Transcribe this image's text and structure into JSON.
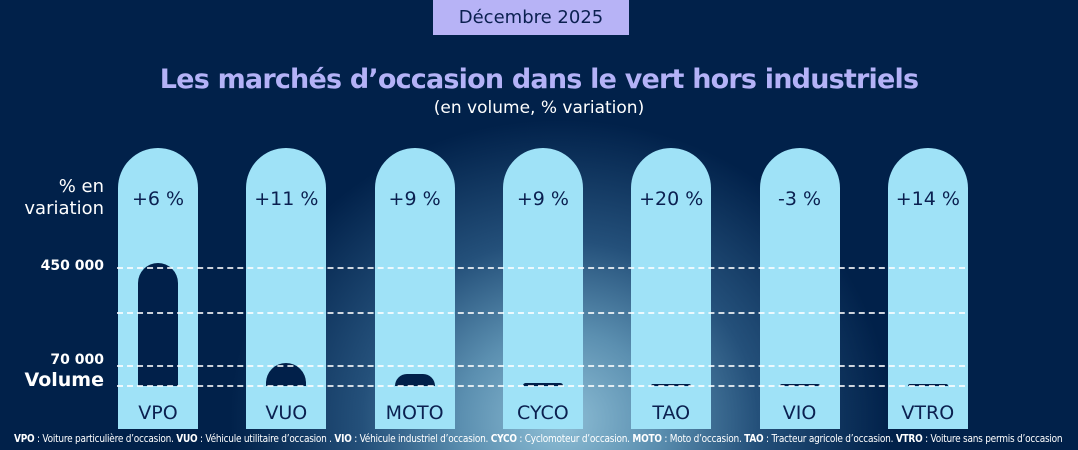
{
  "date_label": "Décembre 2025",
  "chart_data": {
    "type": "bar",
    "title": "Les marchés d’occasion dans le vert hors industriels",
    "subtitle": "(en volume, % variation)",
    "pct_axis_label": "% en variation",
    "ylabel": "Volume",
    "y_ticks": [
      {
        "value": 70000,
        "label": "70 000"
      },
      {
        "value": 450000,
        "label": "450 000"
      }
    ],
    "y_scale": "broken",
    "grid": true,
    "categories": [
      "VPO",
      "VUO",
      "MOTO",
      "CYCO",
      "TAO",
      "VIO",
      "VTRO"
    ],
    "values": [
      469000,
      81000,
      42000,
      9000,
      7000,
      7000,
      7000
    ],
    "variation_labels": [
      "+6 %",
      "+11 %",
      "+9 %",
      "+9 %",
      "+20 %",
      "-3 %",
      "+14 %"
    ],
    "variation_pct": [
      6,
      11,
      9,
      9,
      20,
      -3,
      14
    ]
  },
  "colors": {
    "background": "#01214a",
    "column": "#9fe2f7",
    "bar": "#01204a",
    "title": "#b4b2f7",
    "date_pill": "#b7b3f6"
  },
  "footer": [
    {
      "abbr": "VPO",
      "text": " : Voiture particulière d’occasion. "
    },
    {
      "abbr": "VUO",
      "text": " : Véhicule utilitaire d’occasion . "
    },
    {
      "abbr": "VIO",
      "text": " : Véhicule industriel d’occasion. "
    },
    {
      "abbr": "CYCO",
      "text": " : Cyclomoteur d’occasion. "
    },
    {
      "abbr": "MOTO",
      "text": " : Moto d’occasion. "
    },
    {
      "abbr": "TAO",
      "text": " : Tracteur agricole d’occasion. "
    },
    {
      "abbr": "VTRO",
      "text": " : Voiture sans permis d’occasion"
    }
  ]
}
